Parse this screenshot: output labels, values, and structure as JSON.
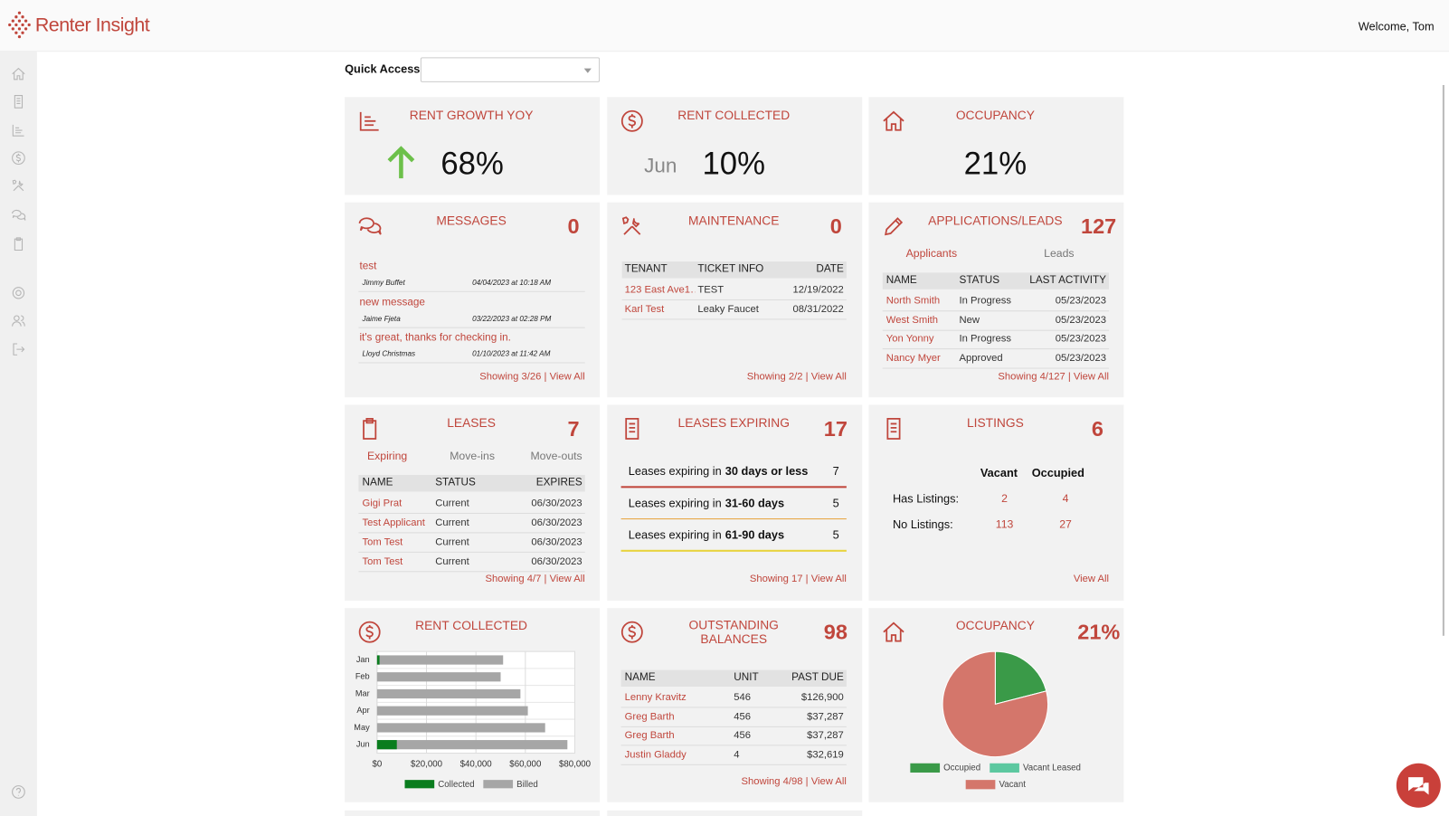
{
  "header": {
    "brand": "Renter Insight",
    "welcome": "Welcome, Tom"
  },
  "quick_access": {
    "label": "Quick Access:"
  },
  "rent_growth": {
    "title": "RENT GROWTH YOY",
    "value": "68%"
  },
  "rent_collected_summary": {
    "title": "RENT COLLECTED",
    "month": "Jun",
    "value": "10%"
  },
  "occupancy_summary": {
    "title": "OCCUPANCY",
    "value": "21%"
  },
  "messages": {
    "title": "MESSAGES",
    "count": "0",
    "items": [
      {
        "subject": "test",
        "author": "Jimmy Buffet",
        "date": "04/04/2023 at 10:18 AM"
      },
      {
        "subject": "new message",
        "author": "Jaime Fjeta",
        "date": "03/22/2023 at 02:28 PM"
      },
      {
        "subject": "it's great, thanks for checking in.",
        "author": "Lloyd Christmas",
        "date": "01/10/2023 at 11:42 AM"
      }
    ],
    "footer": "Showing 3/26 | View All"
  },
  "maintenance": {
    "title": "MAINTENANCE",
    "count": "0",
    "columns": [
      "TENANT",
      "TICKET INFO",
      "DATE"
    ],
    "rows": [
      [
        "123 East Ave1…",
        "TEST",
        "12/19/2022"
      ],
      [
        "Karl Test",
        "Leaky Faucet",
        "08/31/2022"
      ]
    ],
    "footer": "Showing 2/2 | View All"
  },
  "applications": {
    "title": "APPLICATIONS/LEADS",
    "count": "127",
    "tabs": [
      "Applicants",
      "Leads"
    ],
    "columns": [
      "NAME",
      "STATUS",
      "LAST ACTIVITY"
    ],
    "rows": [
      [
        "North Smith",
        "In Progress",
        "05/23/2023"
      ],
      [
        "West Smith",
        "New",
        "05/23/2023"
      ],
      [
        "Yon Yonny",
        "In Progress",
        "05/23/2023"
      ],
      [
        "Nancy Myer",
        "Approved",
        "05/23/2023"
      ]
    ],
    "footer": "Showing 4/127 | View All"
  },
  "leases": {
    "title": "LEASES",
    "count": "7",
    "tabs": [
      "Expiring",
      "Move-ins",
      "Move-outs"
    ],
    "columns": [
      "NAME",
      "STATUS",
      "EXPIRES"
    ],
    "rows": [
      [
        "Gigi Prat",
        "Current",
        "06/30/2023"
      ],
      [
        "Test Applicant",
        "Current",
        "06/30/2023"
      ],
      [
        "Tom Test",
        "Current",
        "06/30/2023"
      ],
      [
        "Tom Test",
        "Current",
        "06/30/2023"
      ]
    ],
    "footer": "Showing 4/7 | View All"
  },
  "leases_expiring": {
    "title": "LEASES EXPIRING",
    "count": "17",
    "rows": [
      {
        "label": "Leases expiring in",
        "range": "30 days or less",
        "count": "7"
      },
      {
        "label": "Leases expiring in",
        "range": "31-60 days",
        "count": "5"
      },
      {
        "label": "Leases expiring in",
        "range": "61-90 days",
        "count": "5"
      }
    ],
    "footer": "Showing 17 | View All"
  },
  "listings": {
    "title": "LISTINGS",
    "count": "6",
    "columns": [
      "Vacant",
      "Occupied"
    ],
    "rows": [
      {
        "label": "Has Listings:",
        "values": [
          "2",
          "4"
        ]
      },
      {
        "label": "No Listings:",
        "values": [
          "113",
          "27"
        ]
      }
    ],
    "footer": "View All"
  },
  "rent_collected_chart": {
    "type": "bar",
    "title": "RENT COLLECTED",
    "categories": [
      "Jan",
      "Feb",
      "Mar",
      "Apr",
      "May",
      "Jun"
    ],
    "series": [
      {
        "name": "Collected",
        "color": "#0a7d1e",
        "values": [
          1000,
          0,
          0,
          0,
          0,
          8000
        ]
      },
      {
        "name": "Billed",
        "color": "#a6a6a6",
        "values": [
          51000,
          50000,
          58000,
          61000,
          68000,
          77000
        ]
      }
    ],
    "xlim": [
      0,
      80000
    ],
    "xticks": [
      {
        "value": 0,
        "label": "$0"
      },
      {
        "value": 20000,
        "label": "$20,000"
      },
      {
        "value": 40000,
        "label": "$40,000"
      },
      {
        "value": 60000,
        "label": "$60,000"
      },
      {
        "value": 80000,
        "label": "$80,000"
      }
    ]
  },
  "outstanding_balances": {
    "title": "OUTSTANDING BALANCES",
    "count": "98",
    "columns": [
      "NAME",
      "UNIT",
      "PAST DUE"
    ],
    "rows": [
      [
        "Lenny Kravitz",
        "546",
        "$126,900"
      ],
      [
        "Greg Barth",
        "456",
        "$37,287"
      ],
      [
        "Greg Barth",
        "456",
        "$37,287"
      ],
      [
        "Justin Gladdy",
        "4",
        "$32,619"
      ]
    ],
    "footer": "Showing 4/98 | View All"
  },
  "occupancy_chart": {
    "type": "pie",
    "title": "OCCUPANCY",
    "count": "21%",
    "categories": [
      "Occupied",
      "Vacant Leased",
      "Vacant"
    ],
    "values": [
      21,
      0,
      79
    ],
    "colors": [
      "#3a9a48",
      "#5cc8a0",
      "#d4766b"
    ]
  }
}
